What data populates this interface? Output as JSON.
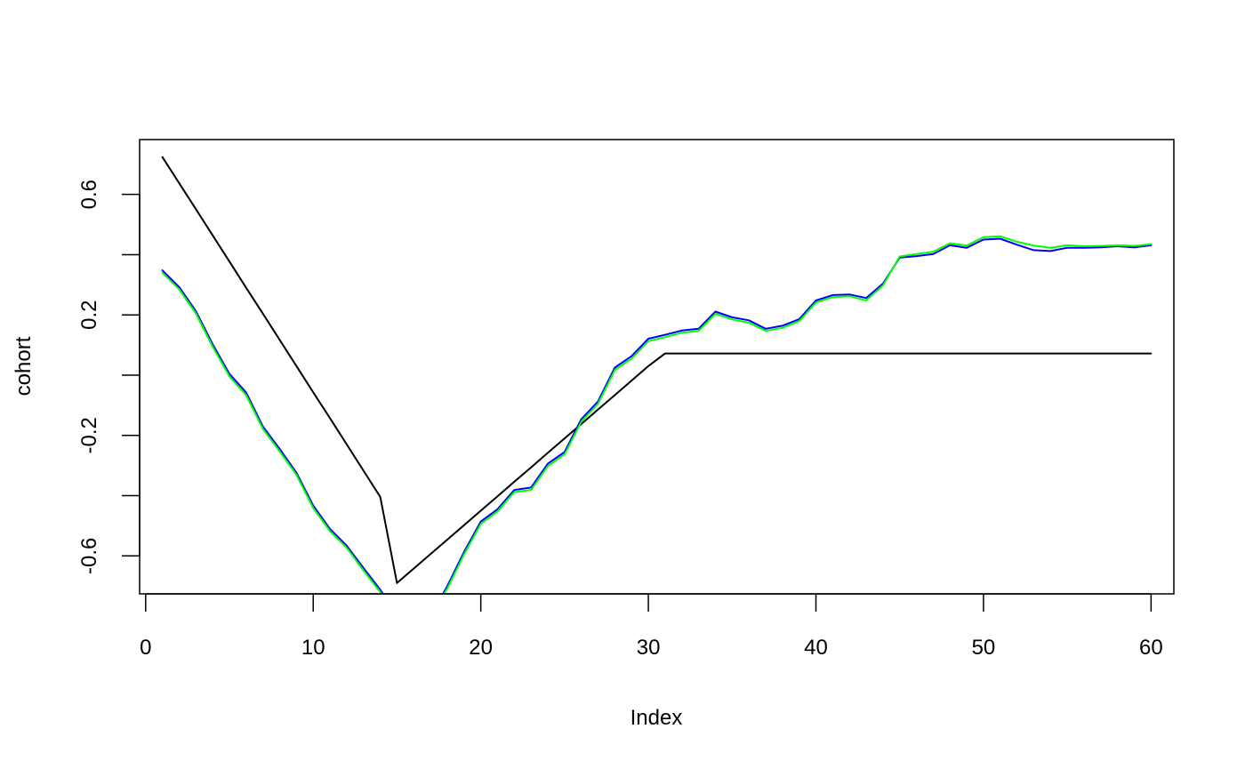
{
  "chart_data": {
    "type": "line",
    "title": "",
    "xlabel": "Index",
    "ylabel": "cohort",
    "xlim": [
      -0.36,
      61.36
    ],
    "ylim": [
      -0.726,
      0.782
    ],
    "x_ticks": [
      0,
      10,
      20,
      30,
      40,
      50,
      60
    ],
    "x_tick_labels": [
      "0",
      "10",
      "20",
      "30",
      "40",
      "50",
      "60"
    ],
    "y_ticks": [
      -0.6,
      -0.4,
      -0.2,
      0.0,
      0.2,
      0.4,
      0.6
    ],
    "y_tick_labels": [
      "-0.6",
      "",
      "-0.2",
      "",
      "0.2",
      "",
      "0.6"
    ],
    "grid": false,
    "legend": "none",
    "x": [
      1,
      2,
      3,
      4,
      5,
      6,
      7,
      8,
      9,
      10,
      11,
      12,
      13,
      14,
      15,
      16,
      17,
      18,
      19,
      20,
      21,
      22,
      23,
      24,
      25,
      26,
      27,
      28,
      29,
      30,
      31,
      32,
      33,
      34,
      35,
      36,
      37,
      38,
      39,
      40,
      41,
      42,
      43,
      44,
      45,
      46,
      47,
      48,
      49,
      50,
      51,
      52,
      53,
      54,
      55,
      56,
      57,
      58,
      59,
      60
    ],
    "series": [
      {
        "color": "#000000",
        "values": [
          0.724,
          0.637,
          0.551,
          0.464,
          0.377,
          0.29,
          0.204,
          0.117,
          0.03,
          -0.057,
          -0.143,
          -0.23,
          -0.317,
          -0.404,
          -0.69,
          -0.642,
          -0.594,
          -0.546,
          -0.498,
          -0.45,
          -0.402,
          -0.354,
          -0.306,
          -0.258,
          -0.21,
          -0.162,
          -0.114,
          -0.066,
          -0.018,
          0.03,
          0.072,
          0.072,
          0.072,
          0.072,
          0.072,
          0.072,
          0.072,
          0.072,
          0.072,
          0.072,
          0.072,
          0.072,
          0.072,
          0.072,
          0.072,
          0.072,
          0.072,
          0.072,
          0.072,
          0.072,
          0.072,
          0.072,
          0.072,
          0.072,
          0.072,
          0.072,
          0.072,
          0.072,
          0.072,
          0.072
        ]
      },
      {
        "color": "#0000ff",
        "values": [
          0.348,
          0.292,
          0.212,
          0.102,
          0.004,
          -0.058,
          -0.171,
          -0.245,
          -0.324,
          -0.433,
          -0.511,
          -0.566,
          -0.64,
          -0.712,
          -0.8,
          -0.8,
          -0.8,
          -0.7,
          -0.587,
          -0.486,
          -0.445,
          -0.381,
          -0.373,
          -0.294,
          -0.255,
          -0.146,
          -0.087,
          0.025,
          0.063,
          0.121,
          0.134,
          0.148,
          0.154,
          0.211,
          0.192,
          0.182,
          0.154,
          0.164,
          0.186,
          0.248,
          0.266,
          0.268,
          0.256,
          0.304,
          0.39,
          0.395,
          0.402,
          0.431,
          0.423,
          0.45,
          0.453,
          0.433,
          0.415,
          0.412,
          0.423,
          0.423,
          0.424,
          0.428,
          0.424,
          0.431
        ]
      },
      {
        "color": "#00ff00",
        "values": [
          0.34,
          0.285,
          0.205,
          0.094,
          -0.004,
          -0.066,
          -0.179,
          -0.253,
          -0.331,
          -0.441,
          -0.518,
          -0.573,
          -0.648,
          -0.72,
          -0.8,
          -0.8,
          -0.8,
          -0.708,
          -0.595,
          -0.494,
          -0.452,
          -0.388,
          -0.381,
          -0.302,
          -0.263,
          -0.154,
          -0.095,
          0.017,
          0.055,
          0.113,
          0.126,
          0.141,
          0.147,
          0.204,
          0.185,
          0.174,
          0.147,
          0.157,
          0.179,
          0.241,
          0.259,
          0.262,
          0.248,
          0.298,
          0.394,
          0.402,
          0.41,
          0.438,
          0.43,
          0.458,
          0.461,
          0.443,
          0.43,
          0.423,
          0.431,
          0.428,
          0.429,
          0.431,
          0.429,
          0.435
        ]
      }
    ]
  }
}
